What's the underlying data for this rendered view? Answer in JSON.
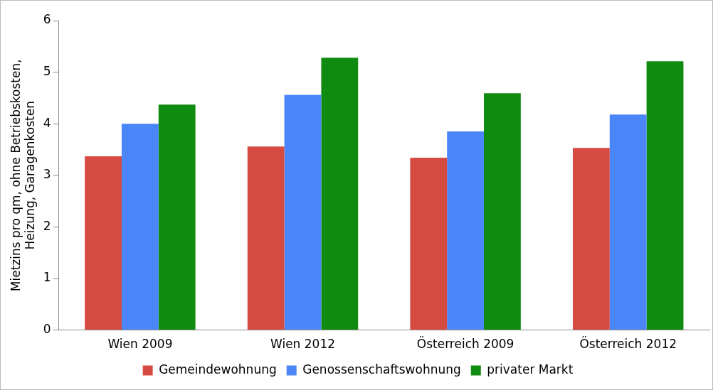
{
  "chart_data": {
    "type": "bar",
    "ylabel": "Mietzins pro qm, ohne Betriebskosten, Heizung, Garagenkosten",
    "categories": [
      "Wien 2009",
      "Wien 2012",
      "Österreich 2009",
      "Österreich 2012"
    ],
    "series": [
      {
        "name": "Gemeindewohnung",
        "color": "#d64b41",
        "values": [
          3.37,
          3.56,
          3.34,
          3.53
        ]
      },
      {
        "name": "Genossenschaftswohnung",
        "color": "#4a86f7",
        "values": [
          4.0,
          4.56,
          3.85,
          4.18
        ]
      },
      {
        "name": "privater Markt",
        "color": "#0f8b0f",
        "values": [
          4.37,
          5.28,
          4.59,
          5.21
        ]
      }
    ],
    "ylim": [
      0,
      6
    ],
    "yticks": [
      0,
      1,
      2,
      3,
      4,
      5,
      6
    ],
    "grid": false,
    "legend": "bottom"
  }
}
